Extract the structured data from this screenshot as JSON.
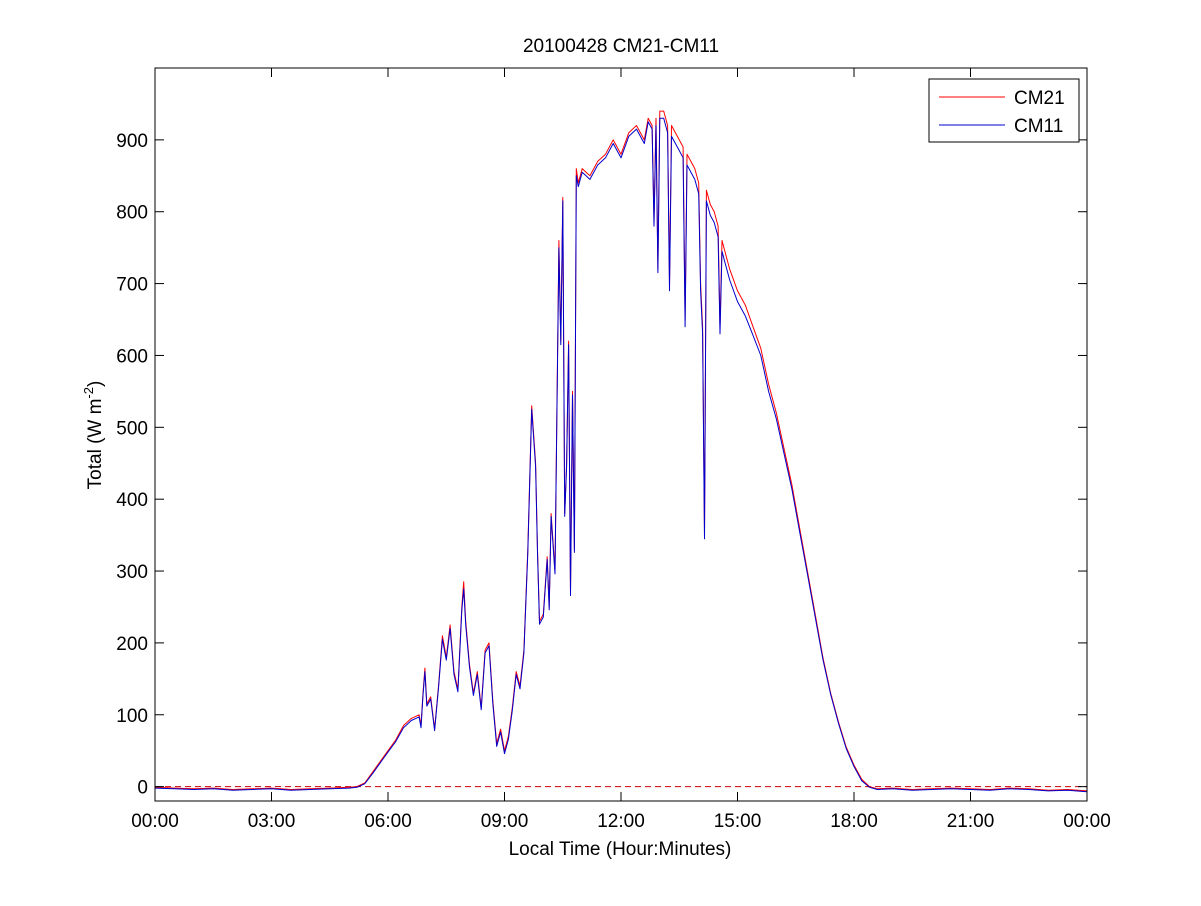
{
  "chart_data": {
    "type": "line",
    "title": "20100428 CM21-CM11",
    "xlabel": "Local Time (Hour:Minutes)",
    "ylabel": "Total (W m",
    "ylabel_sup": "-2",
    "ylabel_close": ")",
    "xlim_hours": [
      0,
      24
    ],
    "ylim": [
      -20,
      1000
    ],
    "x_ticks": [
      {
        "hour": 0,
        "label": "00:00"
      },
      {
        "hour": 3,
        "label": "03:00"
      },
      {
        "hour": 6,
        "label": "06:00"
      },
      {
        "hour": 9,
        "label": "09:00"
      },
      {
        "hour": 12,
        "label": "12:00"
      },
      {
        "hour": 15,
        "label": "15:00"
      },
      {
        "hour": 18,
        "label": "18:00"
      },
      {
        "hour": 21,
        "label": "21:00"
      },
      {
        "hour": 24,
        "label": "00:00"
      }
    ],
    "y_ticks": [
      0,
      100,
      200,
      300,
      400,
      500,
      600,
      700,
      800,
      900
    ],
    "grid": false,
    "legend_position": "top-right",
    "reference_line": {
      "y": 0,
      "color": "#cc0000",
      "style": "dashed"
    },
    "series": [
      {
        "name": "CM21",
        "color": "#ff0000",
        "points": [
          [
            0,
            -1
          ],
          [
            0.5,
            -2
          ],
          [
            1,
            -3
          ],
          [
            1.5,
            -2
          ],
          [
            2,
            -4
          ],
          [
            2.5,
            -3
          ],
          [
            3,
            -2
          ],
          [
            3.5,
            -4
          ],
          [
            4,
            -3
          ],
          [
            4.5,
            -2
          ],
          [
            5,
            -1
          ],
          [
            5.2,
            0
          ],
          [
            5.4,
            5
          ],
          [
            5.6,
            20
          ],
          [
            5.8,
            35
          ],
          [
            6,
            50
          ],
          [
            6.2,
            65
          ],
          [
            6.4,
            85
          ],
          [
            6.6,
            95
          ],
          [
            6.8,
            100
          ],
          [
            6.85,
            85
          ],
          [
            6.9,
            130
          ],
          [
            6.95,
            165
          ],
          [
            7,
            115
          ],
          [
            7.1,
            125
          ],
          [
            7.2,
            80
          ],
          [
            7.3,
            140
          ],
          [
            7.4,
            210
          ],
          [
            7.5,
            180
          ],
          [
            7.6,
            225
          ],
          [
            7.7,
            160
          ],
          [
            7.8,
            135
          ],
          [
            7.9,
            250
          ],
          [
            7.95,
            285
          ],
          [
            8,
            230
          ],
          [
            8.1,
            170
          ],
          [
            8.2,
            130
          ],
          [
            8.3,
            160
          ],
          [
            8.4,
            110
          ],
          [
            8.5,
            190
          ],
          [
            8.6,
            200
          ],
          [
            8.7,
            120
          ],
          [
            8.8,
            60
          ],
          [
            8.9,
            80
          ],
          [
            9,
            50
          ],
          [
            9.1,
            70
          ],
          [
            9.2,
            110
          ],
          [
            9.3,
            160
          ],
          [
            9.4,
            140
          ],
          [
            9.5,
            190
          ],
          [
            9.6,
            330
          ],
          [
            9.7,
            530
          ],
          [
            9.8,
            450
          ],
          [
            9.85,
            330
          ],
          [
            9.9,
            230
          ],
          [
            10,
            240
          ],
          [
            10.1,
            320
          ],
          [
            10.15,
            250
          ],
          [
            10.2,
            380
          ],
          [
            10.3,
            300
          ],
          [
            10.4,
            760
          ],
          [
            10.45,
            620
          ],
          [
            10.5,
            820
          ],
          [
            10.55,
            380
          ],
          [
            10.6,
            450
          ],
          [
            10.65,
            620
          ],
          [
            10.7,
            270
          ],
          [
            10.75,
            550
          ],
          [
            10.8,
            330
          ],
          [
            10.85,
            860
          ],
          [
            10.9,
            840
          ],
          [
            11,
            860
          ],
          [
            11.2,
            850
          ],
          [
            11.4,
            870
          ],
          [
            11.6,
            880
          ],
          [
            11.8,
            900
          ],
          [
            12,
            880
          ],
          [
            12.2,
            910
          ],
          [
            12.4,
            920
          ],
          [
            12.6,
            900
          ],
          [
            12.7,
            930
          ],
          [
            12.8,
            920
          ],
          [
            12.85,
            790
          ],
          [
            12.9,
            930
          ],
          [
            12.95,
            720
          ],
          [
            13,
            940
          ],
          [
            13.1,
            940
          ],
          [
            13.2,
            920
          ],
          [
            13.25,
            700
          ],
          [
            13.3,
            920
          ],
          [
            13.4,
            910
          ],
          [
            13.5,
            900
          ],
          [
            13.6,
            890
          ],
          [
            13.65,
            650
          ],
          [
            13.7,
            880
          ],
          [
            13.8,
            870
          ],
          [
            13.9,
            860
          ],
          [
            14,
            840
          ],
          [
            14.05,
            700
          ],
          [
            14.1,
            640
          ],
          [
            14.15,
            350
          ],
          [
            14.2,
            830
          ],
          [
            14.3,
            810
          ],
          [
            14.4,
            800
          ],
          [
            14.5,
            780
          ],
          [
            14.55,
            640
          ],
          [
            14.6,
            760
          ],
          [
            14.7,
            740
          ],
          [
            14.8,
            720
          ],
          [
            15,
            690
          ],
          [
            15.2,
            670
          ],
          [
            15.4,
            640
          ],
          [
            15.6,
            610
          ],
          [
            15.8,
            560
          ],
          [
            16,
            520
          ],
          [
            16.2,
            470
          ],
          [
            16.4,
            420
          ],
          [
            16.6,
            360
          ],
          [
            16.8,
            300
          ],
          [
            17,
            240
          ],
          [
            17.2,
            180
          ],
          [
            17.4,
            130
          ],
          [
            17.6,
            90
          ],
          [
            17.8,
            55
          ],
          [
            18,
            30
          ],
          [
            18.2,
            10
          ],
          [
            18.4,
            0
          ],
          [
            18.6,
            -3
          ],
          [
            19,
            -2
          ],
          [
            19.5,
            -4
          ],
          [
            20,
            -3
          ],
          [
            20.5,
            -2
          ],
          [
            21,
            -3
          ],
          [
            21.5,
            -4
          ],
          [
            22,
            -2
          ],
          [
            22.5,
            -3
          ],
          [
            23,
            -5
          ],
          [
            23.5,
            -4
          ],
          [
            24,
            -6
          ]
        ]
      },
      {
        "name": "CM11",
        "color": "#0000cc",
        "points": [
          [
            0,
            -2
          ],
          [
            0.5,
            -3
          ],
          [
            1,
            -4
          ],
          [
            1.5,
            -3
          ],
          [
            2,
            -5
          ],
          [
            2.5,
            -4
          ],
          [
            3,
            -3
          ],
          [
            3.5,
            -5
          ],
          [
            4,
            -4
          ],
          [
            4.5,
            -3
          ],
          [
            5,
            -2
          ],
          [
            5.2,
            -1
          ],
          [
            5.4,
            4
          ],
          [
            5.6,
            18
          ],
          [
            5.8,
            33
          ],
          [
            6,
            48
          ],
          [
            6.2,
            63
          ],
          [
            6.4,
            82
          ],
          [
            6.6,
            92
          ],
          [
            6.8,
            97
          ],
          [
            6.85,
            82
          ],
          [
            6.9,
            127
          ],
          [
            6.95,
            160
          ],
          [
            7,
            112
          ],
          [
            7.1,
            122
          ],
          [
            7.2,
            78
          ],
          [
            7.3,
            137
          ],
          [
            7.4,
            205
          ],
          [
            7.5,
            176
          ],
          [
            7.6,
            220
          ],
          [
            7.7,
            156
          ],
          [
            7.8,
            132
          ],
          [
            7.9,
            245
          ],
          [
            7.95,
            275
          ],
          [
            8,
            225
          ],
          [
            8.1,
            166
          ],
          [
            8.2,
            127
          ],
          [
            8.3,
            156
          ],
          [
            8.4,
            107
          ],
          [
            8.5,
            186
          ],
          [
            8.6,
            196
          ],
          [
            8.7,
            116
          ],
          [
            8.8,
            56
          ],
          [
            8.9,
            76
          ],
          [
            9,
            46
          ],
          [
            9.1,
            66
          ],
          [
            9.2,
            106
          ],
          [
            9.3,
            156
          ],
          [
            9.4,
            136
          ],
          [
            9.5,
            186
          ],
          [
            9.6,
            325
          ],
          [
            9.7,
            525
          ],
          [
            9.8,
            445
          ],
          [
            9.85,
            325
          ],
          [
            9.9,
            226
          ],
          [
            10,
            236
          ],
          [
            10.1,
            316
          ],
          [
            10.15,
            246
          ],
          [
            10.2,
            376
          ],
          [
            10.3,
            296
          ],
          [
            10.4,
            750
          ],
          [
            10.45,
            615
          ],
          [
            10.5,
            815
          ],
          [
            10.55,
            376
          ],
          [
            10.6,
            445
          ],
          [
            10.65,
            615
          ],
          [
            10.7,
            266
          ],
          [
            10.75,
            545
          ],
          [
            10.8,
            326
          ],
          [
            10.85,
            850
          ],
          [
            10.9,
            835
          ],
          [
            11,
            855
          ],
          [
            11.2,
            845
          ],
          [
            11.4,
            865
          ],
          [
            11.6,
            875
          ],
          [
            11.8,
            895
          ],
          [
            12,
            875
          ],
          [
            12.2,
            905
          ],
          [
            12.4,
            915
          ],
          [
            12.6,
            895
          ],
          [
            12.7,
            925
          ],
          [
            12.8,
            915
          ],
          [
            12.85,
            780
          ],
          [
            12.9,
            920
          ],
          [
            12.95,
            715
          ],
          [
            13,
            930
          ],
          [
            13.1,
            930
          ],
          [
            13.2,
            910
          ],
          [
            13.25,
            690
          ],
          [
            13.3,
            905
          ],
          [
            13.4,
            895
          ],
          [
            13.5,
            885
          ],
          [
            13.6,
            875
          ],
          [
            13.65,
            640
          ],
          [
            13.7,
            865
          ],
          [
            13.8,
            855
          ],
          [
            13.9,
            845
          ],
          [
            14,
            825
          ],
          [
            14.05,
            690
          ],
          [
            14.1,
            630
          ],
          [
            14.15,
            345
          ],
          [
            14.2,
            815
          ],
          [
            14.3,
            795
          ],
          [
            14.4,
            785
          ],
          [
            14.5,
            765
          ],
          [
            14.55,
            630
          ],
          [
            14.6,
            745
          ],
          [
            14.7,
            725
          ],
          [
            14.8,
            705
          ],
          [
            15,
            675
          ],
          [
            15.2,
            655
          ],
          [
            15.4,
            628
          ],
          [
            15.6,
            600
          ],
          [
            15.8,
            550
          ],
          [
            16,
            512
          ],
          [
            16.2,
            463
          ],
          [
            16.4,
            414
          ],
          [
            16.6,
            355
          ],
          [
            16.8,
            296
          ],
          [
            17,
            236
          ],
          [
            17.2,
            177
          ],
          [
            17.4,
            128
          ],
          [
            17.6,
            88
          ],
          [
            17.8,
            53
          ],
          [
            18,
            28
          ],
          [
            18.2,
            8
          ],
          [
            18.4,
            -1
          ],
          [
            18.6,
            -4
          ],
          [
            19,
            -3
          ],
          [
            19.5,
            -5
          ],
          [
            20,
            -4
          ],
          [
            20.5,
            -3
          ],
          [
            21,
            -4
          ],
          [
            21.5,
            -5
          ],
          [
            22,
            -3
          ],
          [
            22.5,
            -4
          ],
          [
            23,
            -6
          ],
          [
            23.5,
            -5
          ],
          [
            24,
            -7
          ]
        ]
      }
    ]
  }
}
